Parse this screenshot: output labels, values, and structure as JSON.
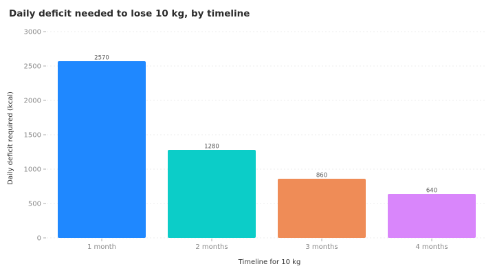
{
  "chart_data": {
    "type": "bar",
    "title": "Daily deficit needed to lose 10 kg, by timeline",
    "xlabel": "Timeline for 10 kg",
    "ylabel": "Daily deficit required (kcal)",
    "categories": [
      "1 month",
      "2 months",
      "3 months",
      "4 months"
    ],
    "values": [
      2570,
      1280,
      860,
      640
    ],
    "data_labels": [
      "2570",
      "1280",
      "860",
      "640"
    ],
    "colors": [
      "#1f88ff",
      "#0ccdc8",
      "#ef8c57",
      "#d986fb"
    ],
    "ylim": [
      0,
      3000
    ],
    "yticks": [
      0,
      500,
      1000,
      1500,
      2000,
      2500,
      3000
    ],
    "ytick_labels": [
      "0",
      "500",
      "1000",
      "1500",
      "2000",
      "2500",
      "3000"
    ],
    "grid": true,
    "legend": "none"
  }
}
